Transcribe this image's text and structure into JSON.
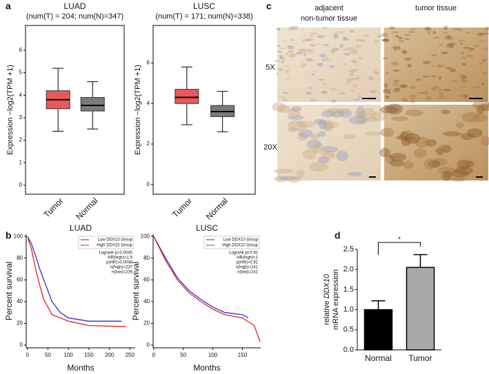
{
  "panel_labels": [
    "a",
    "b",
    "c",
    "d"
  ],
  "histology": {
    "columns": [
      [
        "adjacent",
        "non-tumor tissue"
      ],
      [
        "tumor tissue"
      ]
    ],
    "rows": [
      "5X",
      "20X"
    ]
  },
  "chart_data": [
    {
      "type": "box",
      "title": "LUAD",
      "subtitle": "(num(T) = 204; num(N)=347)",
      "ylabel": "Expression −log2(TPM +1)",
      "categories": [
        "Tumor",
        "Normal"
      ],
      "colors": [
        "#e8585c",
        "#7a7a7a"
      ],
      "boxes": [
        {
          "whislo": 2.4,
          "q1": 3.4,
          "med": 3.8,
          "q3": 4.2,
          "whishi": 5.2
        },
        {
          "whislo": 2.5,
          "q1": 3.3,
          "med": 3.55,
          "q3": 3.9,
          "whishi": 4.6
        }
      ],
      "ylim": [
        -0.4,
        7.1
      ],
      "yticks": [
        0,
        1,
        2,
        3,
        4,
        5,
        6
      ]
    },
    {
      "type": "box",
      "title": "LUSC",
      "subtitle": "(num(T) = 171; num(N)=338)",
      "ylabel": "Expression −log2(TPM +1)",
      "categories": [
        "Tumor",
        "Normal"
      ],
      "colors": [
        "#e8585c",
        "#7a7a7a"
      ],
      "boxes": [
        {
          "whislo": 2.95,
          "q1": 4.0,
          "med": 4.3,
          "q3": 4.7,
          "whishi": 5.8
        },
        {
          "whislo": 2.6,
          "q1": 3.35,
          "med": 3.6,
          "q3": 3.9,
          "whishi": 4.6
        }
      ],
      "ylim": [
        -0.48,
        7.85
      ],
      "yticks": [
        0,
        2,
        4,
        6
      ]
    },
    {
      "type": "line",
      "title": "LUAD",
      "xlabel": "Months",
      "ylabel": "Percent survival",
      "xlim": [
        -3,
        263
      ],
      "xticks": [
        0,
        50,
        100,
        150,
        200,
        250
      ],
      "ylim": [
        -2.5,
        102
      ],
      "yticks": [
        0,
        20,
        40,
        60,
        80,
        100
      ],
      "series": [
        {
          "name": "Low DDX10 Group",
          "color": "#2b2bd9",
          "x": [
            0,
            10,
            20,
            30,
            40,
            50,
            60,
            80,
            100,
            150,
            230
          ],
          "values": [
            100,
            93,
            82,
            70,
            60,
            50,
            40,
            30,
            25,
            22,
            22
          ]
        },
        {
          "name": "High DDX10 Group",
          "color": "#e02020",
          "x": [
            0,
            10,
            20,
            30,
            40,
            50,
            60,
            80,
            100,
            150,
            240
          ],
          "values": [
            100,
            88,
            70,
            55,
            42,
            35,
            28,
            25,
            22,
            18,
            17
          ]
        }
      ],
      "annotations": [
        "Logrank p=0.0045",
        "HR(high)=1.5",
        "p(HR)=0.0048",
        "n(high)=237",
        "n(low)=239"
      ]
    },
    {
      "type": "line",
      "title": "LUSC",
      "xlabel": "Months",
      "ylabel": "Percent survival",
      "xlim": [
        -1,
        181
      ],
      "xticks": [
        0,
        50,
        100,
        150
      ],
      "ylim": [
        -2.5,
        102
      ],
      "yticks": [
        0,
        20,
        40,
        60,
        80,
        100
      ],
      "series": [
        {
          "name": "Low DDX10 Group",
          "color": "#2b2bd9",
          "x": [
            0,
            20,
            40,
            60,
            80,
            100,
            120,
            150,
            160
          ],
          "values": [
            100,
            80,
            62,
            50,
            42,
            35,
            30,
            28,
            25
          ]
        },
        {
          "name": "High DDX10 Group",
          "color": "#e02020",
          "x": [
            0,
            20,
            40,
            60,
            80,
            100,
            120,
            150,
            170,
            180
          ],
          "values": [
            100,
            78,
            60,
            48,
            40,
            33,
            28,
            25,
            18,
            3
          ]
        }
      ],
      "annotations": [
        "Logrank p=0.92",
        "HR(high)=1",
        "p(HR)=0.92",
        "n(high)=241",
        "n(low)=241"
      ]
    },
    {
      "type": "bar",
      "ylabel": [
        "relative",
        "DDX10",
        "mRNA expression"
      ],
      "categories": [
        "Normal",
        "Tumor"
      ],
      "values": [
        1.0,
        2.05
      ],
      "errors": [
        0.22,
        0.32
      ],
      "colors": [
        "#000000",
        "#a9a9a9"
      ],
      "significance": "*",
      "ylim": [
        0,
        2.5
      ],
      "yticks": [
        {
          "value": 0,
          "label": "0.0"
        },
        {
          "value": 0.5,
          "label": "0.5"
        },
        {
          "value": 1,
          "label": "1.0"
        },
        {
          "value": 1.5,
          "label": "1.5"
        },
        {
          "value": 2,
          "label": "2.0"
        },
        {
          "value": 2.5,
          "label": "2.5"
        }
      ]
    }
  ]
}
